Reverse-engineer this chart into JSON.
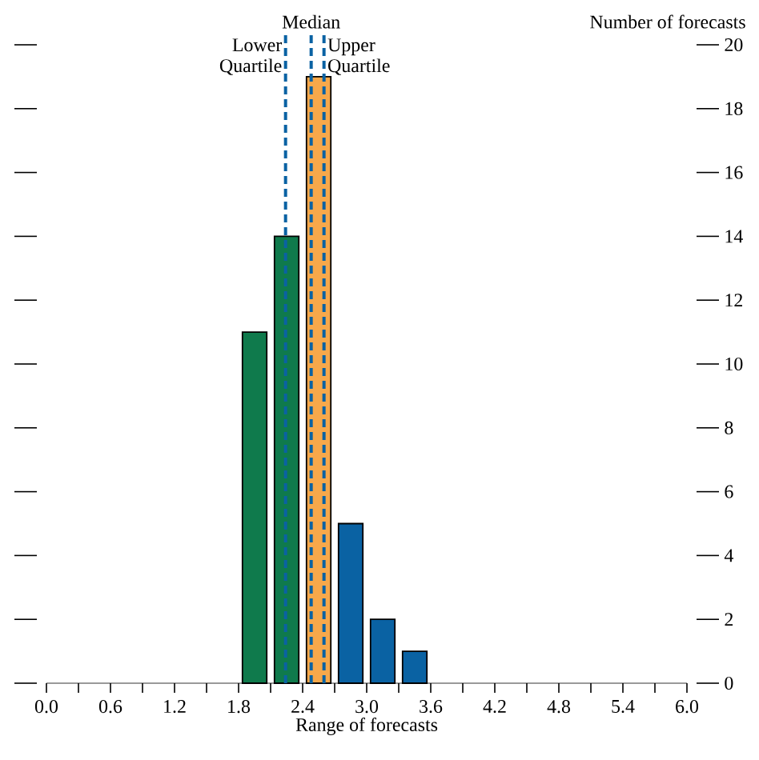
{
  "chart_data": {
    "type": "histogram",
    "xlabel": "Range of forecasts",
    "ylabel": "Number of forecasts",
    "bins": [
      1.8,
      2.1,
      2.4,
      2.7,
      3.0,
      3.3,
      3.6
    ],
    "values": [
      11,
      14,
      19,
      5,
      2,
      1
    ],
    "colors": [
      "#0f7a4c",
      "#0f7a4c",
      "#f7a84a",
      "#0a62a3",
      "#0a62a3",
      "#0a62a3"
    ],
    "xlim": [
      0,
      6
    ],
    "ylim": [
      0,
      20
    ],
    "xticks": [
      {
        "value": 0,
        "label": "0.0"
      },
      {
        "value": 0.3,
        "label": null
      },
      {
        "value": 0.6,
        "label": "0.6"
      },
      {
        "value": 0.9,
        "label": null
      },
      {
        "value": 1.2,
        "label": "1.2"
      },
      {
        "value": 1.5,
        "label": null
      },
      {
        "value": 1.8,
        "label": "1.8"
      },
      {
        "value": 2.1,
        "label": null
      },
      {
        "value": 2.4,
        "label": "2.4"
      },
      {
        "value": 2.7,
        "label": null
      },
      {
        "value": 3.0,
        "label": "3.0"
      },
      {
        "value": 3.3,
        "label": null
      },
      {
        "value": 3.6,
        "label": "3.6"
      },
      {
        "value": 3.9,
        "label": null
      },
      {
        "value": 4.2,
        "label": "4.2"
      },
      {
        "value": 4.5,
        "label": null
      },
      {
        "value": 4.8,
        "label": "4.8"
      },
      {
        "value": 5.1,
        "label": null
      },
      {
        "value": 5.4,
        "label": "5.4"
      },
      {
        "value": 5.7,
        "label": null
      },
      {
        "value": 6.0,
        "label": "6.0"
      }
    ],
    "yticks": [
      0,
      2,
      4,
      6,
      8,
      10,
      12,
      14,
      16,
      18,
      20
    ],
    "ref_lines": [
      {
        "axis": "x",
        "value": 2.24,
        "label": "Lower Quartile",
        "color": "#0a62a3",
        "line_style": "dashed"
      },
      {
        "axis": "x",
        "value": 2.48,
        "label": "Median",
        "color": "#0a62a3",
        "line_style": "dashed"
      },
      {
        "axis": "x",
        "value": 2.6,
        "label": "Upper Quartile",
        "color": "#0a62a3",
        "line_style": "dashed"
      }
    ],
    "grid": false
  }
}
